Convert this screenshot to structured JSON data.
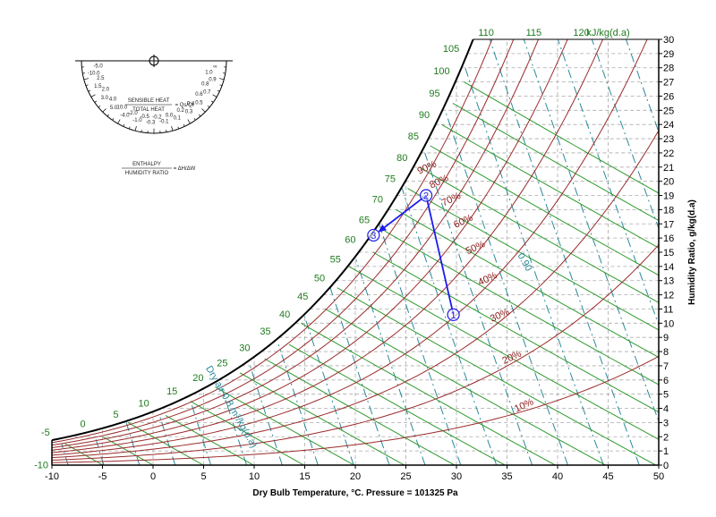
{
  "chart_data": {
    "type": "psychrometric",
    "xlabel": "Dry Bulb Temperature, °C. Pressure = 101325 Pa",
    "ylabel": "Humidity Ratio, g/kg(d.a)",
    "xlim": [
      -10,
      50
    ],
    "ylim": [
      0,
      30
    ],
    "x_ticks": [
      -10,
      -5,
      0,
      5,
      10,
      15,
      20,
      25,
      30,
      35,
      40,
      45,
      50
    ],
    "y_ticks": [
      0,
      1,
      2,
      3,
      4,
      5,
      6,
      7,
      8,
      9,
      10,
      11,
      12,
      13,
      14,
      15,
      16,
      17,
      18,
      19,
      20,
      21,
      22,
      23,
      24,
      25,
      26,
      27,
      28,
      29,
      30
    ],
    "enthalpy_unit": "kJ/kg(d.a)",
    "enthalpy_labels": [
      -10,
      -5,
      0,
      5,
      10,
      15,
      20,
      25,
      30,
      35,
      40,
      45,
      50,
      55,
      60,
      65,
      70,
      75,
      80,
      85,
      90,
      95,
      100,
      105,
      110,
      115,
      120
    ],
    "rh_curves": [
      10,
      20,
      30,
      40,
      50,
      60,
      70,
      80,
      90,
      100
    ],
    "rh_labels": [
      "10%",
      "20%",
      "30%",
      "40%",
      "50%",
      "60%",
      "70%",
      "80%",
      "90%"
    ],
    "specific_volume_labels": [
      "0.90",
      "Dry air 0.8 m³/kg(d.a)"
    ],
    "protractor": {
      "sensible_ratio_label": "SENSIBLE HEAT",
      "total_label": "TOTAL HEAT",
      "ratio_symbol": "Qs/Qt",
      "enthalpy_label": "ENTHALPY",
      "humidity_label": "HUMIDITY RATIO",
      "delta_symbol": "ΔH/ΔW",
      "scale_labels": [
        "∞",
        "1.0",
        "0.9",
        "0.8",
        "0.7",
        "0.6",
        "0.5",
        "0.4",
        "0.3",
        "0.2",
        "0.1",
        "0.0",
        "-0.1",
        "-0.2",
        "-0.3",
        "-0.5",
        "-1.0",
        "-2.0",
        "-4.0",
        "10.0",
        "5.0",
        "4.0",
        "3.0",
        "2.0",
        "1.5",
        "2.5",
        "-10.0",
        "-5.0"
      ]
    },
    "process_points": [
      {
        "label": "1",
        "t": 29.7,
        "w": 10.6
      },
      {
        "label": "2",
        "t": 27.0,
        "w": 19.0
      },
      {
        "label": "3",
        "t": 21.8,
        "w": 16.2
      }
    ],
    "colors": {
      "enthalpy": "#2e9a2e",
      "rh": "#9b2b2b",
      "volume": "#2a8a9a",
      "process": "#1a1aee",
      "saturation": "#000000"
    }
  }
}
